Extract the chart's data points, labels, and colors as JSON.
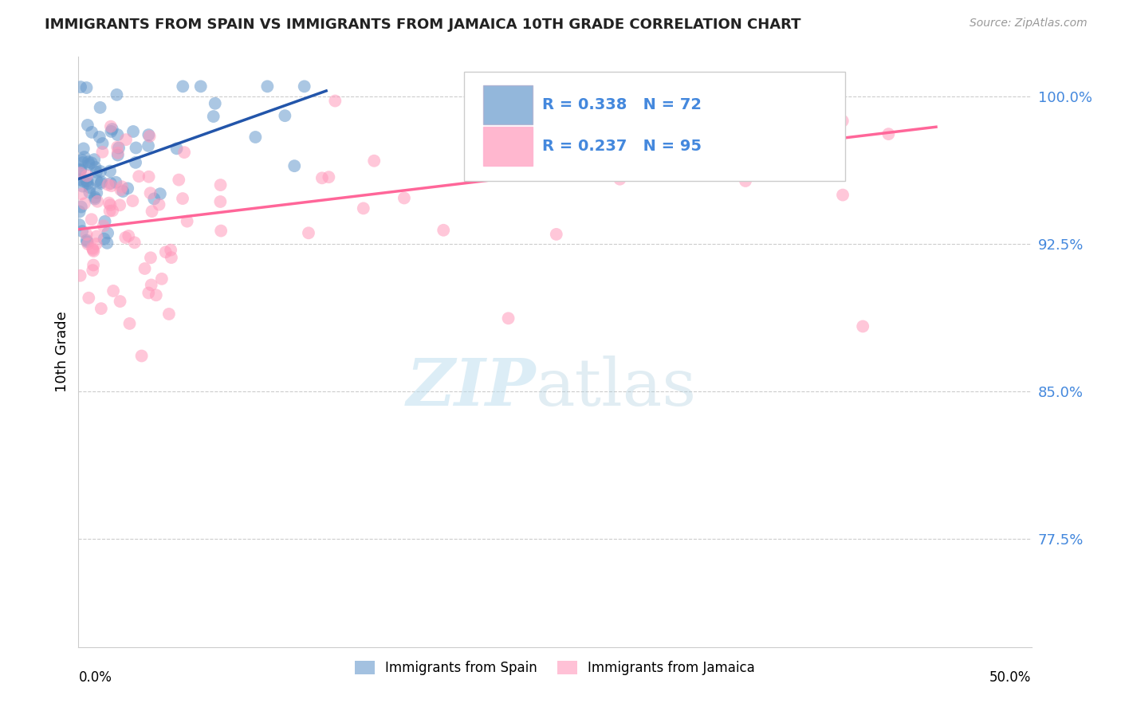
{
  "title": "IMMIGRANTS FROM SPAIN VS IMMIGRANTS FROM JAMAICA 10TH GRADE CORRELATION CHART",
  "source_text": "Source: ZipAtlas.com",
  "ylabel_label": "10th Grade",
  "y_ticks": [
    77.5,
    85.0,
    92.5,
    100.0
  ],
  "y_tick_labels": [
    "77.5%",
    "85.0%",
    "92.5%",
    "100.0%"
  ],
  "x_min": 0.0,
  "x_max": 50.0,
  "y_min": 72.0,
  "y_max": 102.0,
  "spain_color": "#6699CC",
  "spain_line_color": "#2255AA",
  "jamaica_color": "#FF99BB",
  "jamaica_line_color": "#FF6699",
  "spain_R": 0.338,
  "spain_N": 72,
  "jamaica_R": 0.237,
  "jamaica_N": 95,
  "legend_label_spain": "Immigrants from Spain",
  "legend_label_jamaica": "Immigrants from Jamaica",
  "watermark_zip": "ZIP",
  "watermark_atlas": "atlas",
  "background_color": "#ffffff"
}
